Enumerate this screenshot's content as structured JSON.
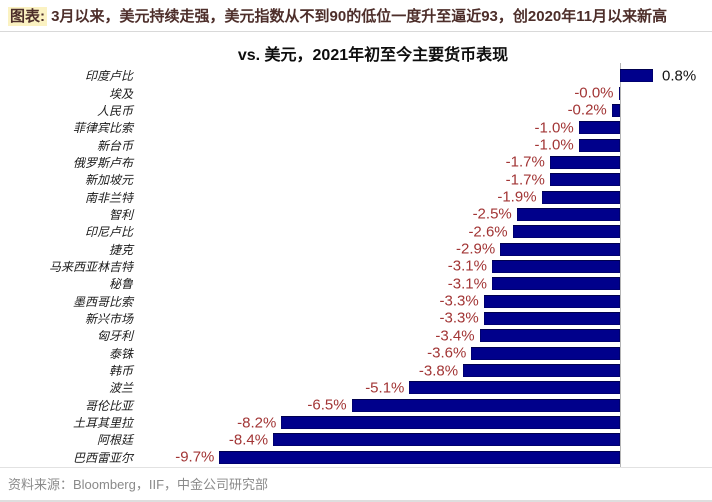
{
  "header": {
    "prefix": "图表:",
    "text": " 3月以来，美元持续走强，美元指数从不到90的低位一度升至逼近93，创2020年11月以来新高"
  },
  "footer": {
    "source_text": "资料来源：Bloomberg，IIF，中金公司研究部"
  },
  "colors": {
    "bar": "#00008B",
    "negative_label": "#a23535",
    "positive_label": "#141414",
    "header_text": "#4d2e2a",
    "header_highlight": "#fbf2c2"
  },
  "chart_data": {
    "type": "bar",
    "orientation": "horizontal",
    "title": "vs. 美元，2021年初至今主要货币表现",
    "xlabel": "",
    "ylabel": "",
    "unit": "%",
    "zero_line": true,
    "grid": false,
    "legend": null,
    "xlim": [
      -11.8,
      2.2
    ],
    "categories": [
      "印度卢比",
      "埃及",
      "人民币",
      "菲律宾比索",
      "新台币",
      "俄罗斯卢布",
      "新加坡元",
      "南非兰特",
      "智利",
      "印尼卢比",
      "捷克",
      "马来西亚林吉特",
      "秘鲁",
      "墨西哥比索",
      "新兴市场",
      "匈牙利",
      "泰铢",
      "韩币",
      "波兰",
      "哥伦比亚",
      "土耳其里拉",
      "阿根廷",
      "巴西雷亚尔"
    ],
    "values": [
      0.8,
      -0.0,
      -0.2,
      -1.0,
      -1.0,
      -1.7,
      -1.7,
      -1.9,
      -2.5,
      -2.6,
      -2.9,
      -3.1,
      -3.1,
      -3.3,
      -3.3,
      -3.4,
      -3.6,
      -3.8,
      -5.1,
      -6.5,
      -8.2,
      -8.4,
      -9.7
    ],
    "value_labels": [
      "0.8%",
      "-0.0%",
      "-0.2%",
      "-1.0%",
      "-1.0%",
      "-1.7%",
      "-1.7%",
      "-1.9%",
      "-2.5%",
      "-2.6%",
      "-2.9%",
      "-3.1%",
      "-3.1%",
      "-3.3%",
      "-3.3%",
      "-3.4%",
      "-3.6%",
      "-3.8%",
      "-5.1%",
      "-6.5%",
      "-8.2%",
      "-8.4%",
      "-9.7%"
    ]
  }
}
